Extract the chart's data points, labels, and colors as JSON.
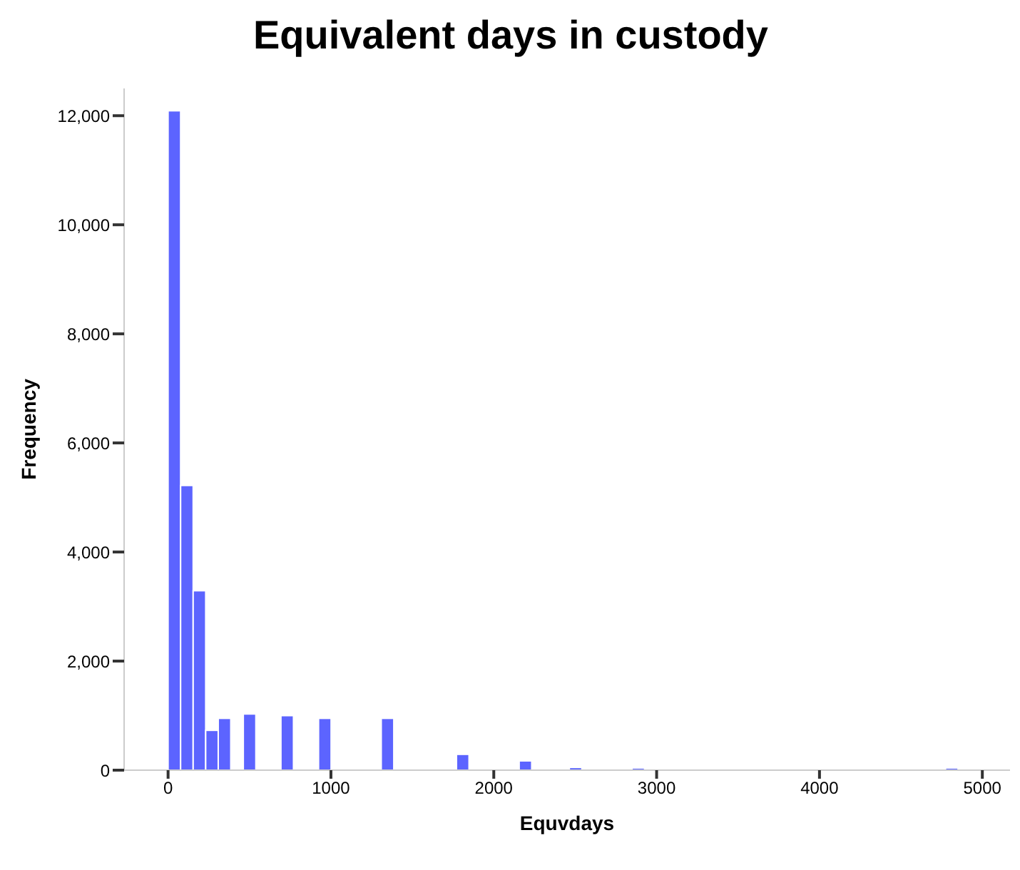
{
  "chart_data": {
    "type": "histogram",
    "title": "Equivalent days in custody",
    "xlabel": "Equvdays",
    "ylabel": "Frequency",
    "color": "#5c64ff",
    "bins": [
      0,
      77,
      154,
      231,
      308,
      385,
      462,
      539,
      616,
      693,
      770,
      847,
      924,
      1001,
      1078,
      1155,
      1232,
      1309,
      1386,
      1463,
      1540,
      1617,
      1694,
      1771,
      1848,
      1925,
      2002,
      2079,
      2156,
      2233,
      2310,
      2387,
      2464,
      2541,
      2618,
      2695,
      2772,
      2849,
      2926,
      3003,
      3080,
      3157,
      3234,
      3311,
      3388,
      3465,
      3542,
      3619,
      3696,
      3773,
      3850,
      3927,
      4004,
      4081,
      4158,
      4235,
      4312,
      4389,
      4466,
      4543,
      4620,
      4697,
      4774,
      4851,
      4928,
      5005
    ],
    "values": [
      12090,
      5220,
      3290,
      730,
      950,
      0,
      1030,
      0,
      0,
      1000,
      0,
      0,
      950,
      0,
      0,
      0,
      0,
      950,
      0,
      0,
      0,
      0,
      0,
      290,
      0,
      0,
      0,
      0,
      170,
      0,
      0,
      0,
      50,
      0,
      0,
      0,
      0,
      40,
      0,
      0,
      0,
      0,
      0,
      0,
      0,
      20,
      0,
      0,
      0,
      0,
      0,
      0,
      0,
      0,
      0,
      0,
      0,
      0,
      0,
      0,
      0,
      0,
      40,
      0,
      0
    ],
    "xlim": [
      -270,
      5170
    ],
    "xticks": [
      0,
      1000,
      2000,
      3000,
      4000,
      5000
    ],
    "ylim": [
      0,
      12500
    ],
    "yticks": [
      {
        "value": 0,
        "label": "0"
      },
      {
        "value": 2000,
        "label": "2,000"
      },
      {
        "value": 4000,
        "label": "4,000"
      },
      {
        "value": 6000,
        "label": "6,000"
      },
      {
        "value": 8000,
        "label": "8,000"
      },
      {
        "value": 10000,
        "label": "10,000"
      },
      {
        "value": 12000,
        "label": "12,000"
      }
    ],
    "grid": false,
    "legend": false
  }
}
